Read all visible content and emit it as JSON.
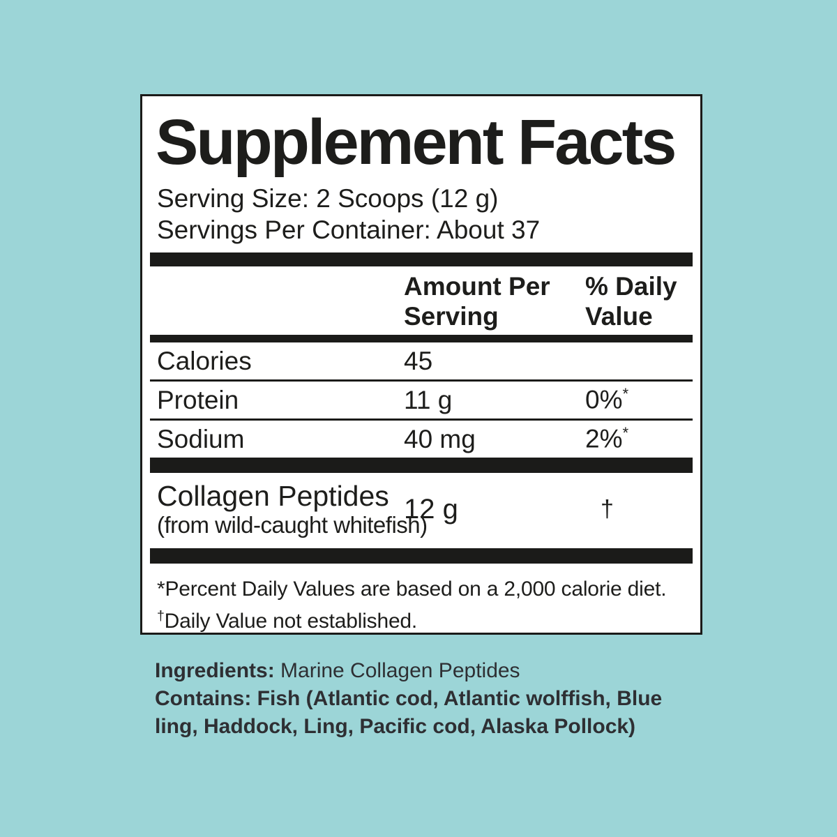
{
  "background_color": "#9cd5d7",
  "panel": {
    "title": "Supplement Facts",
    "serving_size": "Serving Size: 2 Scoops (12 g)",
    "servings_per_container": "Servings Per Container: About 37",
    "header": {
      "amount": "Amount Per Serving",
      "daily_value": "% Daily Value"
    },
    "rows": [
      {
        "name": "Calories",
        "amount": "45",
        "dv": "",
        "dv_mark": ""
      },
      {
        "name": "Protein",
        "amount": "11 g",
        "dv": "0%",
        "dv_mark": "*"
      },
      {
        "name": "Sodium",
        "amount": "40 mg",
        "dv": "2%",
        "dv_mark": "*"
      }
    ],
    "collagen": {
      "name": "Collagen Peptides",
      "source": "(from wild-caught whitefish)",
      "amount": "12 g",
      "dv": "†"
    },
    "footnote": {
      "line1": "*Percent Daily Values are based on a 2,000 calorie diet.",
      "dagger": "†",
      "line2": "Daily Value not established."
    }
  },
  "ingredients": {
    "label": "Ingredients:",
    "value": " Marine Collagen Peptides",
    "contains": "Contains: Fish (Atlantic cod, Atlantic wolffish, Blue\nling, Haddock, Ling, Pacific cod, Alaska Pollock)"
  },
  "colors": {
    "background": "#9cd5d7",
    "panel_background": "#ffffff",
    "rule_color": "#1b1b19",
    "ingredients_text": "#2e2f33"
  }
}
